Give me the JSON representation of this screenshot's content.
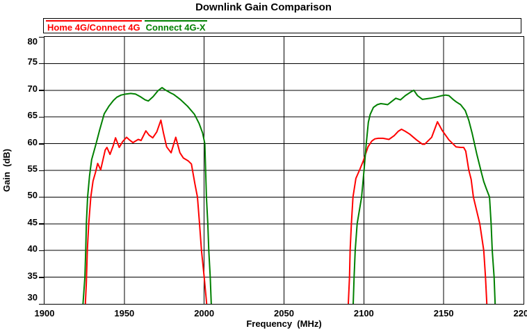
{
  "title": "Downlink Gain Comparison",
  "chart_data": {
    "type": "line",
    "title": "Downlink Gain Comparison",
    "xlabel": "Frequency  (MHz)",
    "ylabel": "Gain  (dB)",
    "xlim": [
      1900,
      2200
    ],
    "ylim": [
      30,
      80
    ],
    "x_ticks": [
      1900,
      1950,
      2000,
      2050,
      2100,
      2150,
      2200
    ],
    "y_ticks": [
      30,
      35,
      40,
      45,
      50,
      55,
      60,
      65,
      70,
      75,
      80
    ],
    "grid": true,
    "grid_color": "#000000",
    "legend_position": "top",
    "background": "#ffffff",
    "series": [
      {
        "name": "Home 4G/Connect 4G",
        "color": "#ff0000",
        "segments": [
          [
            [
              1925.5,
              29.5
            ],
            [
              1926.2,
              34
            ],
            [
              1926.8,
              40
            ],
            [
              1927.7,
              45
            ],
            [
              1929,
              50
            ],
            [
              1930.4,
              53
            ],
            [
              1931.9,
              54.6
            ],
            [
              1933.3,
              56.3
            ],
            [
              1935.2,
              55.1
            ],
            [
              1938,
              58.8
            ],
            [
              1939.1,
              59.3
            ],
            [
              1941,
              58
            ],
            [
              1943,
              59.6
            ],
            [
              1944.5,
              61.1
            ],
            [
              1946.8,
              59.3
            ],
            [
              1949,
              60.4
            ],
            [
              1951.4,
              61.2
            ],
            [
              1953.2,
              60.7
            ],
            [
              1955.4,
              60.2
            ],
            [
              1958.7,
              60.8
            ],
            [
              1960.5,
              60.6
            ],
            [
              1963.5,
              62.4
            ],
            [
              1965.5,
              61.6
            ],
            [
              1967.8,
              61.1
            ],
            [
              1970.3,
              62.2
            ],
            [
              1972.9,
              64.4
            ],
            [
              1974.5,
              62
            ],
            [
              1976.5,
              59.4
            ],
            [
              1979.3,
              58.3
            ],
            [
              1982.2,
              61.2
            ],
            [
              1984.8,
              58.3
            ],
            [
              1987,
              57.3
            ],
            [
              1989.9,
              56.8
            ],
            [
              1992,
              56.2
            ],
            [
              1994.2,
              52.5
            ],
            [
              1995.8,
              50
            ],
            [
              1997.1,
              45
            ],
            [
              1998.3,
              40
            ],
            [
              2000,
              35
            ],
            [
              2001.7,
              29.5
            ]
          ],
          [
            [
              2090.2,
              29.5
            ],
            [
              2091,
              35
            ],
            [
              2091.4,
              40
            ],
            [
              2092.2,
              45
            ],
            [
              2093.2,
              50
            ],
            [
              2095,
              53.5
            ],
            [
              2097.5,
              55.2
            ],
            [
              2099.7,
              56.8
            ],
            [
              2102.6,
              59.4
            ],
            [
              2105,
              60.5
            ],
            [
              2106.9,
              60.9
            ],
            [
              2109,
              61
            ],
            [
              2112,
              61
            ],
            [
              2115.7,
              60.8
            ],
            [
              2119,
              61.5
            ],
            [
              2121.5,
              62.3
            ],
            [
              2123.6,
              62.7
            ],
            [
              2126,
              62.3
            ],
            [
              2128.7,
              61.8
            ],
            [
              2133,
              60.7
            ],
            [
              2136.7,
              59.9
            ],
            [
              2138.1,
              59.9
            ],
            [
              2142.5,
              61.2
            ],
            [
              2146.1,
              64.1
            ],
            [
              2149,
              62.5
            ],
            [
              2153.3,
              60.7
            ],
            [
              2157.7,
              59.4
            ],
            [
              2160.6,
              59.3
            ],
            [
              2162.5,
              59.3
            ],
            [
              2163.8,
              58.6
            ],
            [
              2165.7,
              55.1
            ],
            [
              2167.2,
              53.3
            ],
            [
              2168.6,
              50
            ],
            [
              2172.6,
              45
            ],
            [
              2175.1,
              40
            ],
            [
              2176.2,
              35
            ],
            [
              2177.1,
              29.5
            ]
          ]
        ]
      },
      {
        "name": "Connect 4G-X",
        "color": "#008000",
        "segments": [
          [
            [
              1924,
              29.5
            ],
            [
              1925.3,
              35
            ],
            [
              1925.8,
              40
            ],
            [
              1926.2,
              45
            ],
            [
              1927,
              50
            ],
            [
              1928.2,
              54
            ],
            [
              1929.5,
              57
            ],
            [
              1932.3,
              60
            ],
            [
              1934.5,
              62.5
            ],
            [
              1937.4,
              65.6
            ],
            [
              1940.3,
              67
            ],
            [
              1943.2,
              68.1
            ],
            [
              1945.3,
              68.7
            ],
            [
              1948,
              69.1
            ],
            [
              1951,
              69.3
            ],
            [
              1954,
              69.4
            ],
            [
              1957,
              69.3
            ],
            [
              1960,
              68.8
            ],
            [
              1963,
              68.2
            ],
            [
              1965,
              68
            ],
            [
              1968,
              68.8
            ],
            [
              1971,
              69.9
            ],
            [
              1973.6,
              70.5
            ],
            [
              1976,
              70
            ],
            [
              1979,
              69.5
            ],
            [
              1981,
              69.2
            ],
            [
              1985,
              68.3
            ],
            [
              1989.6,
              67
            ],
            [
              1993.9,
              65.5
            ],
            [
              1996.8,
              63.8
            ],
            [
              1999,
              62
            ],
            [
              2000.4,
              60
            ],
            [
              2001.4,
              50
            ],
            [
              2002.3,
              45
            ],
            [
              2002.9,
              40
            ],
            [
              2003.8,
              35
            ],
            [
              2004.5,
              29.5
            ]
          ],
          [
            [
              2093.3,
              29.5
            ],
            [
              2093.9,
              35
            ],
            [
              2094.6,
              40
            ],
            [
              2095.8,
              45
            ],
            [
              2098.6,
              50
            ],
            [
              2100.1,
              55
            ],
            [
              2101.5,
              60
            ],
            [
              2102.8,
              64
            ],
            [
              2104,
              65.5
            ],
            [
              2106,
              66.8
            ],
            [
              2108.4,
              67.3
            ],
            [
              2110.6,
              67.5
            ],
            [
              2113,
              67.4
            ],
            [
              2114.9,
              67.3
            ],
            [
              2117,
              67.8
            ],
            [
              2120,
              68.5
            ],
            [
              2122.9,
              68.2
            ],
            [
              2126,
              69
            ],
            [
              2129,
              69.6
            ],
            [
              2131.3,
              70
            ],
            [
              2133.6,
              69
            ],
            [
              2136.7,
              68.3
            ],
            [
              2139,
              68.4
            ],
            [
              2141.7,
              68.5
            ],
            [
              2145,
              68.7
            ],
            [
              2149,
              69
            ],
            [
              2151.2,
              69.1
            ],
            [
              2153.3,
              69
            ],
            [
              2156.2,
              68.2
            ],
            [
              2158,
              67.8
            ],
            [
              2160.6,
              67.3
            ],
            [
              2163.5,
              66.2
            ],
            [
              2165.7,
              64.4
            ],
            [
              2167.8,
              62
            ],
            [
              2170.7,
              58.1
            ],
            [
              2173.6,
              54.6
            ],
            [
              2175.1,
              52.9
            ],
            [
              2176.8,
              51.5
            ],
            [
              2178.7,
              50
            ],
            [
              2179.7,
              45
            ],
            [
              2180.4,
              40
            ],
            [
              2181.6,
              35
            ],
            [
              2182.3,
              29.5
            ]
          ]
        ]
      }
    ]
  }
}
